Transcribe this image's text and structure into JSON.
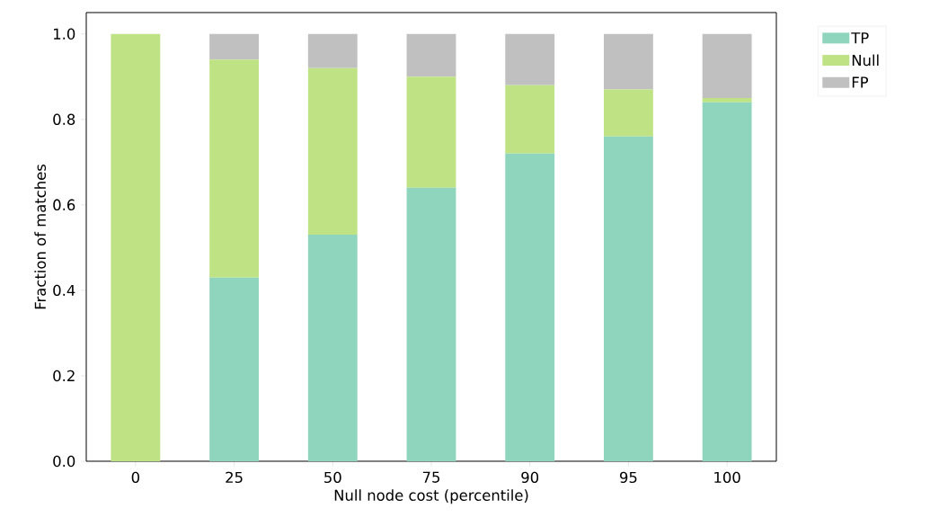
{
  "chart_data": {
    "type": "bar",
    "stacked": true,
    "xlabel": "Null node cost (percentile)",
    "ylabel": "Fraction of matches",
    "categories": [
      "0",
      "25",
      "50",
      "75",
      "90",
      "95",
      "100"
    ],
    "series": [
      {
        "name": "TP",
        "color": "#8fd5be",
        "values": [
          0,
          0.43,
          0.53,
          0.64,
          0.72,
          0.76,
          0.84
        ]
      },
      {
        "name": "Null",
        "color": "#bfe384",
        "values": [
          1.0,
          0.51,
          0.39,
          0.26,
          0.16,
          0.11,
          0.01
        ]
      },
      {
        "name": "FP",
        "color": "#c0c0c0",
        "values": [
          0,
          0.06,
          0.08,
          0.1,
          0.12,
          0.13,
          0.15
        ]
      }
    ],
    "ylim": [
      0,
      1.05
    ],
    "yticks": [
      {
        "value": 0.0,
        "label": "0.0"
      },
      {
        "value": 0.2,
        "label": "0.2"
      },
      {
        "value": 0.4,
        "label": "0.4"
      },
      {
        "value": 0.6,
        "label": "0.6"
      },
      {
        "value": 0.8,
        "label": "0.8"
      },
      {
        "value": 1.0,
        "label": "1.0"
      }
    ],
    "grid": false,
    "legend": "top right"
  }
}
